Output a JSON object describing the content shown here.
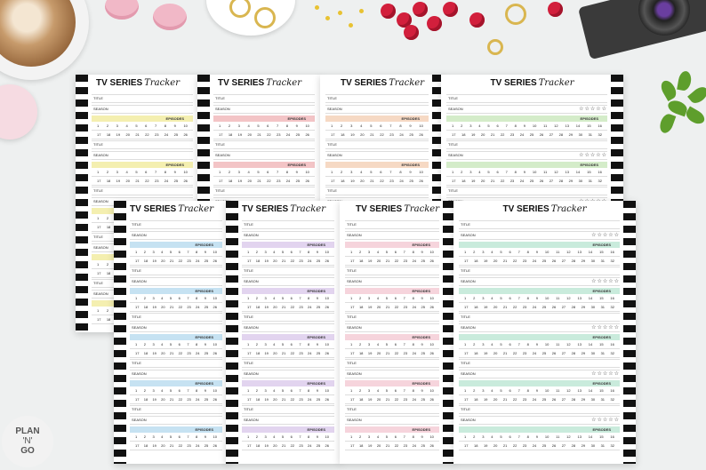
{
  "tracker": {
    "title": "TV SERIES",
    "script": "Tracker",
    "title_label": "TITLE",
    "season_label": "SEASON",
    "episodes_label": "EPISODES",
    "row1": [
      "1",
      "2",
      "3",
      "4",
      "5",
      "6",
      "7",
      "8",
      "9",
      "10",
      "11",
      "12",
      "13",
      "14",
      "15",
      "16"
    ],
    "row2": [
      "17",
      "18",
      "19",
      "20",
      "21",
      "22",
      "23",
      "24",
      "25",
      "26",
      "27",
      "28",
      "29",
      "30",
      "31",
      "32"
    ],
    "stars": "☆☆☆☆☆"
  },
  "colors": {
    "yellow": "#f4efb0",
    "pink": "#f3c4c6",
    "peach": "#f6d9c4",
    "green": "#d4ecc9",
    "blue": "#c6e2f2",
    "purple": "#e2d4ef",
    "rose": "#f6d4dc",
    "mint": "#c9ebdc"
  },
  "logo": {
    "line1": "PLAN",
    "line2": "'N'",
    "line3": "GO"
  }
}
